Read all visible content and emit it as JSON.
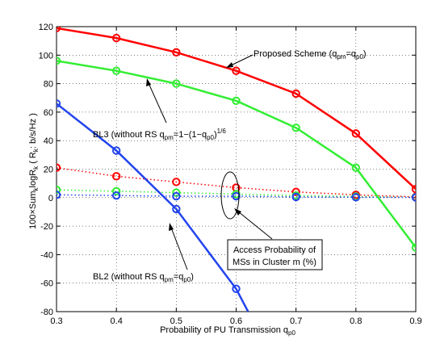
{
  "chart_data": {
    "type": "line",
    "title": "",
    "xlabel": "Probability of PU Transmission q",
    "xlabel_sub": "p0",
    "ylabel": "100×Sum",
    "ylabel_parts": [
      "100×Sum",
      "k",
      "logR",
      "k",
      " ( R",
      "k",
      ": b/s/Hz )"
    ],
    "xlim": [
      0.3,
      0.9
    ],
    "ylim": [
      -80,
      120
    ],
    "xticks": [
      0.3,
      0.4,
      0.5,
      0.6,
      0.7,
      0.8,
      0.9
    ],
    "yticks": [
      -80,
      -60,
      -40,
      -20,
      0,
      20,
      40,
      60,
      80,
      100,
      120
    ],
    "grid": true,
    "legend": "none",
    "series": [
      {
        "key": "proposed",
        "color": "#ff0000",
        "style": "solid",
        "marker": "circle",
        "x": [
          0.3,
          0.4,
          0.5,
          0.6,
          0.7,
          0.8,
          0.9
        ],
        "y": [
          119,
          112,
          102,
          89,
          73,
          45,
          6
        ]
      },
      {
        "key": "bl3",
        "color": "#33ee33",
        "style": "solid",
        "marker": "circle",
        "x": [
          0.3,
          0.4,
          0.5,
          0.6,
          0.7,
          0.8,
          0.9
        ],
        "y": [
          96,
          89,
          80,
          68,
          49,
          21,
          -35
        ]
      },
      {
        "key": "bl2",
        "color": "#2244ee",
        "style": "solid",
        "marker": "circle",
        "x": [
          0.3,
          0.4,
          0.5,
          0.6,
          0.62
        ],
        "y": [
          66,
          33,
          -8,
          -64,
          -80
        ],
        "marker_count": 4
      },
      {
        "key": "proposed_access",
        "color": "#ff0000",
        "style": "dotted",
        "marker": "circle",
        "x": [
          0.3,
          0.4,
          0.5,
          0.6,
          0.7,
          0.8,
          0.9
        ],
        "y": [
          21,
          15,
          11,
          7,
          4,
          2,
          0.5
        ]
      },
      {
        "key": "bl3_access",
        "color": "#33ee33",
        "style": "dotted",
        "marker": "circle",
        "x": [
          0.3,
          0.4,
          0.5,
          0.6,
          0.7,
          0.8,
          0.9
        ],
        "y": [
          5.5,
          4.5,
          3.5,
          2.5,
          1.5,
          0.8,
          0.2
        ]
      },
      {
        "key": "bl2_access",
        "color": "#2244ee",
        "style": "dotted",
        "marker": "circle",
        "x": [
          0.3,
          0.4,
          0.5,
          0.6,
          0.7,
          0.8,
          0.9
        ],
        "y": [
          2,
          1.5,
          1,
          1,
          0.5,
          0.3,
          0.1
        ]
      }
    ],
    "annotations": {
      "proposed": {
        "text": "Proposed Scheme (q",
        "sub1": "pm",
        "mid": "=q",
        "sub2": "p0",
        "end": ")"
      },
      "bl3": {
        "text": "BL3 (without RS q",
        "sub1": "pm",
        "mid": "=1−(1−q",
        "sub2": "p0",
        "end": ")",
        "sup": "1/6"
      },
      "bl2": {
        "text": "BL2 (without RS q",
        "sub1": "pm",
        "mid": "=q",
        "sub2": "p0",
        "end": ")"
      },
      "access_line1": "Access Probability of",
      "access_line2": "MSs in Cluster m (%)"
    }
  }
}
